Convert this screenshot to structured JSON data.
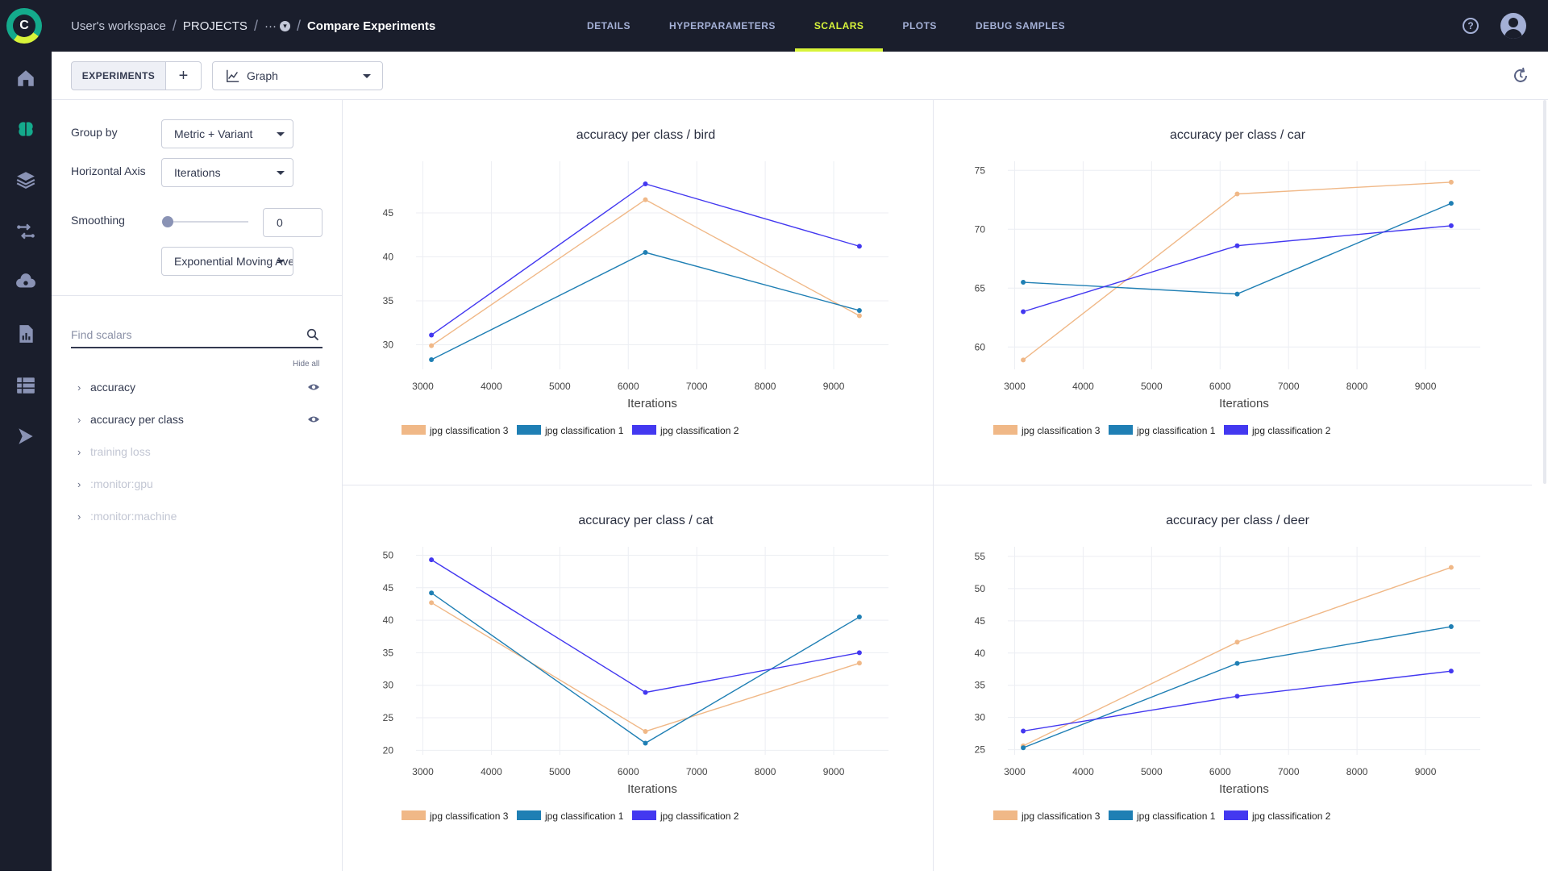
{
  "nav": {
    "breadcrumb": {
      "workspace": "User's workspace",
      "projects": "PROJECTS",
      "more": "···",
      "current": "Compare Experiments"
    },
    "tabs": [
      "DETAILS",
      "HYPERPARAMETERS",
      "SCALARS",
      "PLOTS",
      "DEBUG SAMPLES"
    ],
    "active_tab": "SCALARS",
    "help_glyph": "?"
  },
  "rail_icons": [
    "home-icon",
    "brain-icon",
    "layers-icon",
    "pipelines-icon",
    "cloud-icon",
    "reports-icon",
    "datasets-icon",
    "deploy-icon"
  ],
  "toolbar": {
    "experiments_label": "EXPERIMENTS",
    "add_label": "+",
    "view_select": "Graph"
  },
  "settings": {
    "group_by_label": "Group by",
    "group_by_value": "Metric + Variant",
    "horizontal_axis_label": "Horizontal Axis",
    "horizontal_axis_value": "Iterations",
    "smoothing_label": "Smoothing",
    "smoothing_value": "0",
    "smoothing_type": "Exponential Moving Ave..."
  },
  "scalars": {
    "search_placeholder": "Find scalars",
    "hide_all": "Hide all",
    "items": [
      {
        "label": "accuracy",
        "visible": true
      },
      {
        "label": "accuracy per class",
        "visible": true
      },
      {
        "label": "training loss",
        "visible": false
      },
      {
        "label": ":monitor:gpu",
        "visible": false
      },
      {
        "label": ":monitor:machine",
        "visible": false
      }
    ]
  },
  "colors": {
    "accent": "#d8f43a",
    "jpg classification 3": "#f0b887",
    "jpg classification 1": "#1f7fb4",
    "jpg classification 2": "#4338f0"
  },
  "chart_data": [
    {
      "type": "line",
      "title": "accuracy per class / bird",
      "xlabel": "Iterations",
      "ylabel": "",
      "xlim": [
        2900,
        9800
      ],
      "ylim": [
        27.2,
        50.5
      ],
      "xticks": [
        3000,
        4000,
        5000,
        6000,
        7000,
        8000,
        9000
      ],
      "yticks": [
        30,
        35,
        40,
        45
      ],
      "x": [
        3125,
        6250,
        9375
      ],
      "series": [
        {
          "name": "jpg classification 3",
          "values": [
            29.9,
            46.5,
            33.3
          ]
        },
        {
          "name": "jpg classification 1",
          "values": [
            28.3,
            40.5,
            33.9
          ]
        },
        {
          "name": "jpg classification 2",
          "values": [
            31.1,
            48.3,
            41.2
          ]
        }
      ],
      "legend": "bottom",
      "grid": true
    },
    {
      "type": "line",
      "title": "accuracy per class / car",
      "xlabel": "Iterations",
      "ylabel": "",
      "xlim": [
        2900,
        9800
      ],
      "ylim": [
        58.1,
        75.5
      ],
      "xticks": [
        3000,
        4000,
        5000,
        6000,
        7000,
        8000,
        9000
      ],
      "yticks": [
        60,
        65,
        70,
        75
      ],
      "x": [
        3125,
        6250,
        9375
      ],
      "series": [
        {
          "name": "jpg classification 3",
          "values": [
            58.9,
            73.0,
            74.0
          ]
        },
        {
          "name": "jpg classification 1",
          "values": [
            65.5,
            64.5,
            72.2
          ]
        },
        {
          "name": "jpg classification 2",
          "values": [
            63.0,
            68.6,
            70.3
          ]
        }
      ],
      "legend": "bottom",
      "grid": true
    },
    {
      "type": "line",
      "title": "accuracy per class / cat",
      "xlabel": "Iterations",
      "ylabel": "",
      "xlim": [
        2900,
        9800
      ],
      "ylim": [
        19.3,
        50.8
      ],
      "xticks": [
        3000,
        4000,
        5000,
        6000,
        7000,
        8000,
        9000
      ],
      "yticks": [
        20,
        25,
        30,
        35,
        40,
        45,
        50
      ],
      "x": [
        3125,
        6250,
        9375
      ],
      "series": [
        {
          "name": "jpg classification 3",
          "values": [
            42.7,
            22.9,
            33.4
          ]
        },
        {
          "name": "jpg classification 1",
          "values": [
            44.2,
            21.1,
            40.5
          ]
        },
        {
          "name": "jpg classification 2",
          "values": [
            49.3,
            28.9,
            35.0
          ]
        }
      ],
      "legend": "bottom",
      "grid": true
    },
    {
      "type": "line",
      "title": "accuracy per class / deer",
      "xlabel": "Iterations",
      "ylabel": "",
      "xlim": [
        2900,
        9800
      ],
      "ylim": [
        24.2,
        56.0
      ],
      "xticks": [
        3000,
        4000,
        5000,
        6000,
        7000,
        8000,
        9000
      ],
      "yticks": [
        25,
        30,
        35,
        40,
        45,
        50,
        55
      ],
      "x": [
        3125,
        6250,
        9375
      ],
      "series": [
        {
          "name": "jpg classification 3",
          "values": [
            25.6,
            41.7,
            53.3
          ]
        },
        {
          "name": "jpg classification 1",
          "values": [
            25.3,
            38.4,
            44.1
          ]
        },
        {
          "name": "jpg classification 2",
          "values": [
            27.9,
            33.3,
            37.2
          ]
        }
      ],
      "legend": "bottom",
      "grid": true
    }
  ]
}
